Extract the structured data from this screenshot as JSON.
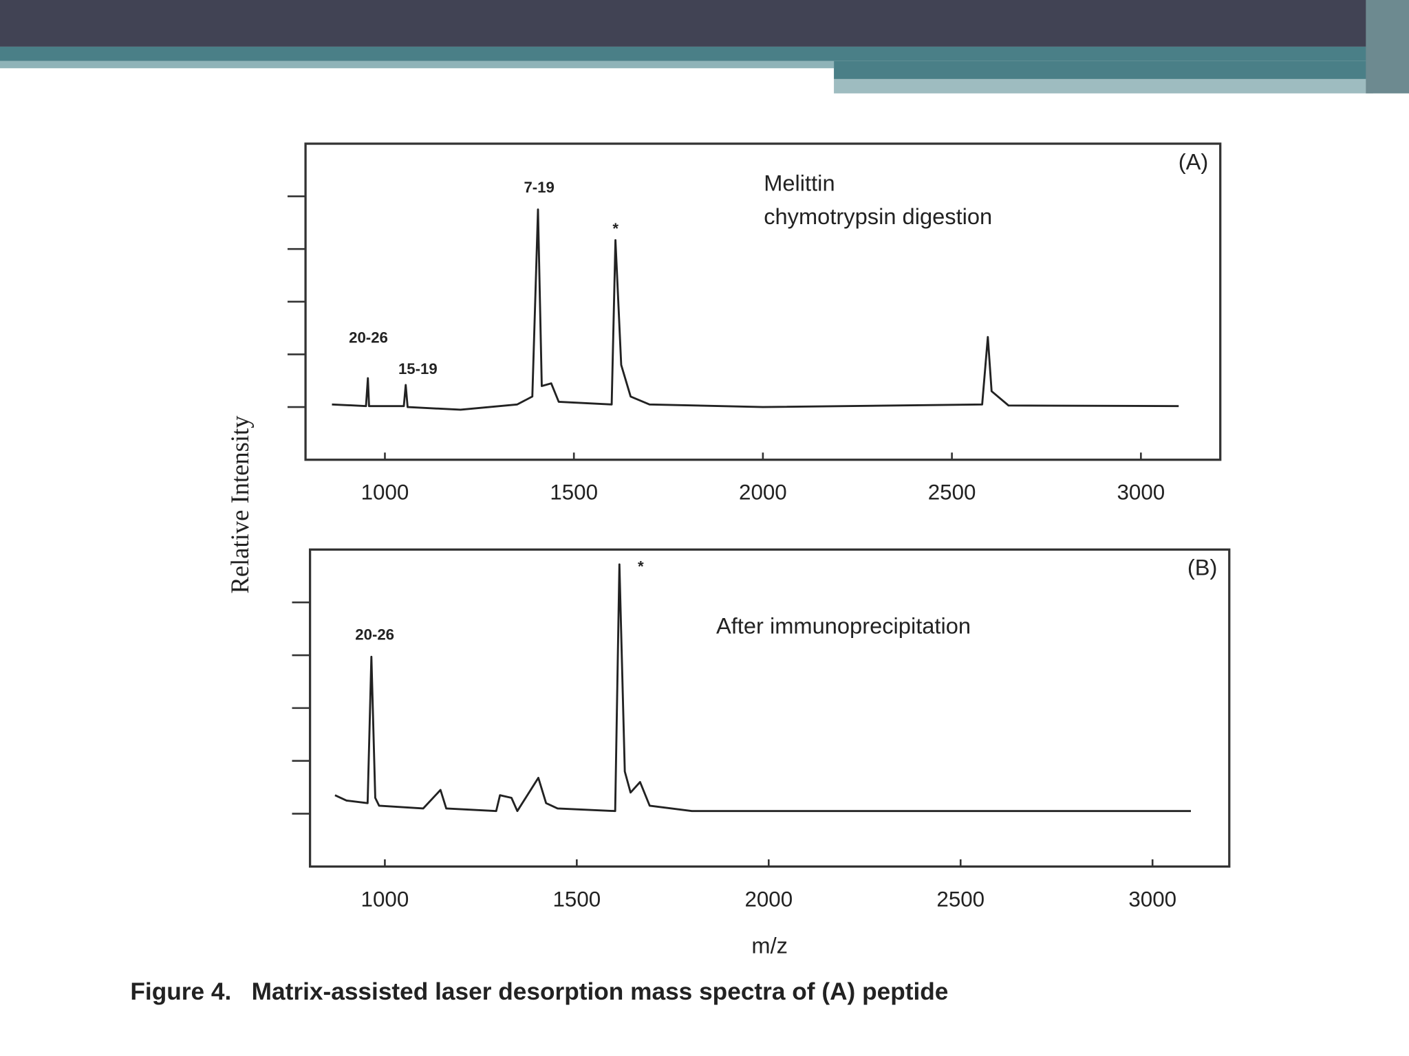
{
  "figure": {
    "y_label": "Relative Intensity",
    "caption": "Figure 4.   Matrix-assisted laser desorption mass spectra of (A) peptide"
  },
  "chart_data": [
    {
      "type": "line",
      "panel_label": "(A)",
      "annotations": [
        "7-19",
        "*",
        "20-26",
        "15-19",
        "Melittin",
        "chymotrypsin digestion"
      ],
      "xlim": [
        790,
        3210
      ],
      "xticks": [
        1000,
        1500,
        2000,
        2500,
        3000
      ],
      "ylim": [
        -1,
        5
      ],
      "yticks": [
        0,
        1,
        2,
        3,
        4
      ],
      "x": [
        860,
        950,
        955,
        958,
        1050,
        1055,
        1060,
        1200,
        1350,
        1390,
        1405,
        1415,
        1440,
        1460,
        1600,
        1610,
        1625,
        1650,
        1700,
        2000,
        2580,
        2595,
        2605,
        2650,
        3100
      ],
      "series": [
        {
          "color": "#222222",
          "values": [
            0.05,
            0.02,
            0.55,
            0.02,
            0.02,
            0.42,
            0.0,
            -0.05,
            0.05,
            0.2,
            3.75,
            0.4,
            0.45,
            0.1,
            0.05,
            3.17,
            0.8,
            0.2,
            0.05,
            0.0,
            0.05,
            1.33,
            0.3,
            0.03,
            0.02
          ]
        }
      ]
    },
    {
      "type": "line",
      "panel_label": "(B)",
      "x_label": "m/z",
      "annotations": [
        "20-26",
        "*",
        "After immunoprecipitation"
      ],
      "xlim": [
        805,
        3200
      ],
      "xticks": [
        1000,
        1500,
        2000,
        2500,
        3000
      ],
      "ylim": [
        -1,
        5
      ],
      "yticks": [
        0,
        1,
        2,
        3,
        4
      ],
      "x": [
        870,
        900,
        955,
        965,
        975,
        985,
        1100,
        1145,
        1160,
        1290,
        1300,
        1330,
        1345,
        1400,
        1420,
        1450,
        1600,
        1611,
        1625,
        1640,
        1665,
        1690,
        1800,
        2500,
        3100
      ],
      "series": [
        {
          "color": "#222222",
          "values": [
            0.35,
            0.25,
            0.2,
            2.97,
            0.3,
            0.15,
            0.1,
            0.45,
            0.1,
            0.05,
            0.35,
            0.3,
            0.05,
            0.68,
            0.2,
            0.1,
            0.05,
            4.72,
            0.8,
            0.4,
            0.6,
            0.15,
            0.05,
            0.05,
            0.05
          ]
        }
      ]
    }
  ]
}
